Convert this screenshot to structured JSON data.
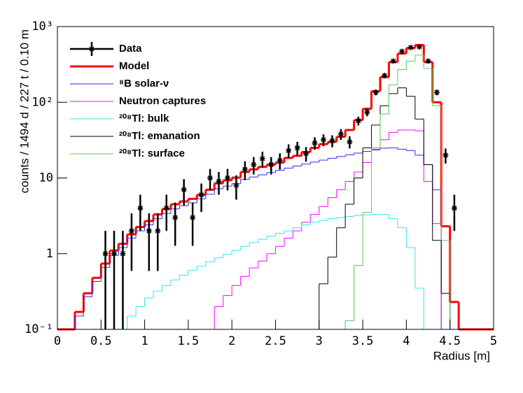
{
  "chart_data": {
    "type": "histogram",
    "x_label": "Radius [m]",
    "y_label": "counts / 1494 d /  227 t / 0.10 m",
    "log_y": true,
    "xlim": [
      0,
      5
    ],
    "ylim": [
      0.1,
      1000
    ],
    "xticks": [
      0,
      0.5,
      1,
      1.5,
      2,
      2.5,
      3,
      3.5,
      4,
      4.5,
      5
    ],
    "yticks": [
      {
        "value": 0.1,
        "label": "10⁻¹"
      },
      1,
      10,
      {
        "value": 100,
        "label": "10²"
      },
      {
        "value": 1000,
        "label": "10³"
      }
    ],
    "bins": [
      0,
      0.1,
      0.2,
      0.3,
      0.4,
      0.5,
      0.6,
      0.7,
      0.8,
      0.9,
      1,
      1.1,
      1.2,
      1.3,
      1.4,
      1.5,
      1.6,
      1.7,
      1.8,
      1.9,
      2,
      2.1,
      2.2,
      2.3,
      2.4,
      2.5,
      2.6,
      2.7,
      2.8,
      2.9,
      3,
      3.1,
      3.2,
      3.3,
      3.4,
      3.5,
      3.6,
      3.7,
      3.8,
      3.9,
      4,
      4.1,
      4.2,
      4.3,
      4.4,
      4.5,
      4.6,
      4.7,
      4.8,
      4.9,
      5
    ],
    "data_points": {
      "name": "Data",
      "color": "#000000",
      "values": [
        null,
        null,
        null,
        null,
        null,
        1,
        1,
        1,
        2,
        4,
        2,
        2,
        4,
        3,
        7,
        3,
        6,
        10,
        9,
        10,
        8,
        13,
        15,
        18,
        15,
        17,
        23,
        25,
        21,
        29,
        32,
        31,
        38,
        30,
        57,
        74,
        135,
        225,
        350,
        470,
        530,
        540,
        350,
        135,
        20,
        4,
        null,
        null,
        null,
        null
      ],
      "errors": [
        null,
        null,
        null,
        null,
        null,
        1,
        1,
        1,
        1.41,
        2,
        1.41,
        1.41,
        2,
        1.73,
        2.65,
        1.73,
        2.45,
        3.16,
        3,
        3.16,
        2.83,
        3.61,
        3.87,
        4.24,
        3.87,
        4.12,
        4.8,
        5,
        4.58,
        5.39,
        5.66,
        5.57,
        6.16,
        5.48,
        7.55,
        8.6,
        11.6,
        15,
        18.7,
        21.7,
        23,
        23.2,
        18.7,
        11.6,
        4.47,
        2,
        null,
        null,
        null,
        null
      ]
    },
    "series": [
      {
        "name": "Model",
        "color": "#ff0000",
        "line_width": 3,
        "values": [
          0.1,
          0.1,
          0.17,
          0.3,
          0.48,
          0.74,
          1.1,
          1.35,
          1.8,
          2.25,
          2.7,
          3.3,
          3.9,
          4.5,
          4.9,
          5.3,
          6,
          7,
          8.5,
          9.3,
          10.1,
          12,
          13,
          14,
          15,
          16,
          18.4,
          19.6,
          22,
          25,
          28,
          30,
          35,
          43,
          58,
          82,
          140,
          215,
          340,
          440,
          520,
          570,
          340,
          100,
          2.3,
          0.23,
          0.1,
          0.1,
          0.1,
          0.1
        ]
      },
      {
        "name": "⁸B solar-ν",
        "color": "#2a2af0",
        "line_width": 1,
        "values": [
          null,
          null,
          0.15,
          0.27,
          0.43,
          0.66,
          0.95,
          1.2,
          1.6,
          2,
          2.4,
          2.9,
          3.4,
          3.9,
          4.3,
          4.7,
          5.3,
          6.1,
          7.2,
          7.8,
          8.4,
          9.6,
          10.3,
          11,
          11.8,
          12.6,
          13.5,
          14.4,
          15.3,
          16.2,
          17.2,
          18.2,
          19.2,
          20.2,
          21.3,
          22.4,
          23.5,
          24.8,
          25,
          24,
          23,
          20,
          15,
          7,
          null,
          null,
          null,
          null,
          null,
          null
        ]
      },
      {
        "name": "Neutron captures",
        "color": "#ff00ff",
        "line_width": 1,
        "values": [
          null,
          null,
          null,
          null,
          null,
          null,
          null,
          null,
          null,
          null,
          null,
          null,
          null,
          null,
          null,
          null,
          null,
          null,
          0.2,
          0.28,
          0.38,
          0.5,
          0.65,
          0.8,
          1,
          1.25,
          1.6,
          2,
          2.6,
          3.3,
          4.2,
          5.5,
          7,
          9,
          12,
          16,
          24,
          32,
          40,
          43,
          43,
          42,
          9,
          2.5,
          null,
          null,
          null,
          null,
          null,
          null
        ]
      },
      {
        "name": "²⁰⁸Tl: bulk",
        "color": "#33e6e6",
        "line_width": 1,
        "values": [
          null,
          null,
          null,
          null,
          null,
          null,
          null,
          null,
          0.15,
          0.2,
          0.26,
          0.32,
          0.38,
          0.45,
          0.52,
          0.6,
          0.68,
          0.78,
          0.88,
          0.98,
          1.1,
          1.25,
          1.4,
          1.55,
          1.7,
          1.85,
          2,
          2.2,
          2.4,
          2.6,
          2.75,
          2.9,
          3,
          3.1,
          3.2,
          3.25,
          3.3,
          3.3,
          2.9,
          2.2,
          1.2,
          0.35,
          null,
          null,
          null,
          null,
          null,
          null,
          null,
          null
        ]
      },
      {
        "name": "²⁰⁸Tl: emanation",
        "color": "#000000",
        "line_width": 1,
        "values": [
          null,
          null,
          null,
          null,
          null,
          null,
          null,
          null,
          null,
          null,
          null,
          null,
          null,
          null,
          null,
          null,
          null,
          null,
          null,
          null,
          null,
          null,
          null,
          null,
          null,
          null,
          null,
          null,
          null,
          null,
          0.4,
          0.9,
          2.2,
          4.5,
          10,
          25,
          50,
          90,
          130,
          155,
          120,
          60,
          15,
          1.5,
          0.3,
          null,
          null,
          null,
          null,
          null
        ]
      },
      {
        "name": "²⁰⁸Tl: surface",
        "color": "#55cc55",
        "line_width": 1,
        "values": [
          null,
          null,
          null,
          null,
          null,
          null,
          null,
          null,
          null,
          null,
          null,
          null,
          null,
          null,
          null,
          null,
          null,
          null,
          null,
          null,
          null,
          null,
          null,
          null,
          null,
          null,
          null,
          null,
          null,
          null,
          null,
          null,
          null,
          0.13,
          0.7,
          3.5,
          25,
          70,
          170,
          270,
          350,
          420,
          280,
          90,
          1.5,
          null,
          null,
          null,
          null,
          null
        ]
      }
    ]
  }
}
